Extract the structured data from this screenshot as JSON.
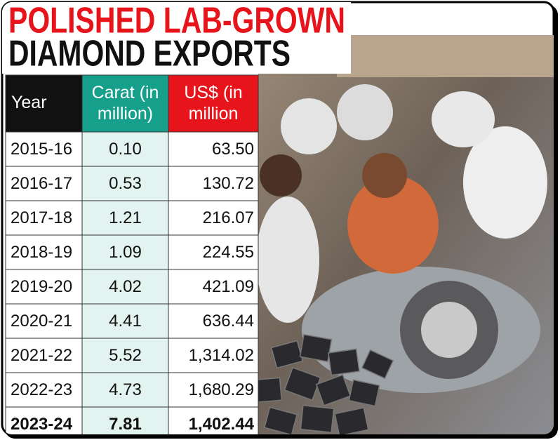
{
  "header": {
    "title_line1": "POLISHED LAB-GROWN",
    "title_line2": "DIAMOND EXPORTS"
  },
  "table": {
    "columns": [
      "Year",
      "Carat (in million)",
      "US$ (in million"
    ],
    "rows": [
      [
        "2015-16",
        "0.10",
        "63.50"
      ],
      [
        "2016-17",
        "0.53",
        "130.72"
      ],
      [
        "2017-18",
        "1.21",
        "216.07"
      ],
      [
        "2018-19",
        "1.09",
        "224.55"
      ],
      [
        "2019-20",
        "4.02",
        "421.09"
      ],
      [
        "2020-21",
        "4.41",
        "636.44"
      ],
      [
        "2021-22",
        "5.52",
        "1,314.02"
      ],
      [
        "2022-23",
        "4.73",
        "1,680.29"
      ],
      [
        "2023-24",
        "7.81",
        "1,402.44"
      ]
    ]
  }
}
